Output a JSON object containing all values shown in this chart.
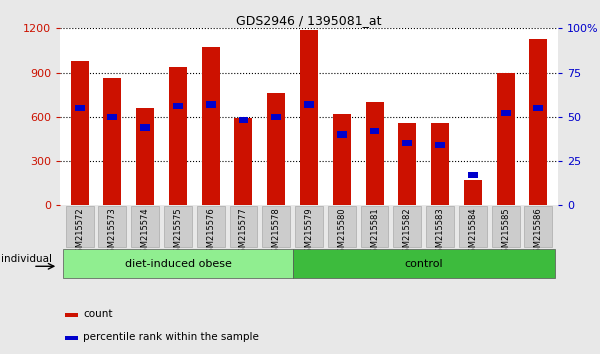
{
  "title": "GDS2946 / 1395081_at",
  "samples": [
    "GSM215572",
    "GSM215573",
    "GSM215574",
    "GSM215575",
    "GSM215576",
    "GSM215577",
    "GSM215578",
    "GSM215579",
    "GSM215580",
    "GSM215581",
    "GSM215582",
    "GSM215583",
    "GSM215584",
    "GSM215585",
    "GSM215586"
  ],
  "counts": [
    980,
    860,
    660,
    940,
    1070,
    590,
    760,
    1190,
    620,
    700,
    560,
    560,
    170,
    900,
    1130
  ],
  "percentile_ranks_pct": [
    55,
    50,
    44,
    56,
    57,
    48,
    50,
    57,
    40,
    42,
    35,
    34,
    17,
    52,
    55
  ],
  "groups": [
    {
      "label": "diet-induced obese",
      "start": 0,
      "end": 7,
      "color": "#90ee90"
    },
    {
      "label": "control",
      "start": 7,
      "end": 15,
      "color": "#3dbb3d"
    }
  ],
  "ylim_left": [
    0,
    1200
  ],
  "ylim_right": [
    0,
    100
  ],
  "yticks_left": [
    0,
    300,
    600,
    900,
    1200
  ],
  "yticks_right": [
    0,
    25,
    50,
    75,
    100
  ],
  "bar_color": "#cc1100",
  "percentile_color": "#0000cc",
  "bar_width": 0.55,
  "bg_color": "#e8e8e8",
  "plot_bg": "#ffffff",
  "left_tick_color": "#cc1100",
  "right_tick_color": "#0000cc",
  "individual_label": "individual",
  "legend_count_label": "count",
  "legend_percentile_label": "percentile rank within the sample"
}
